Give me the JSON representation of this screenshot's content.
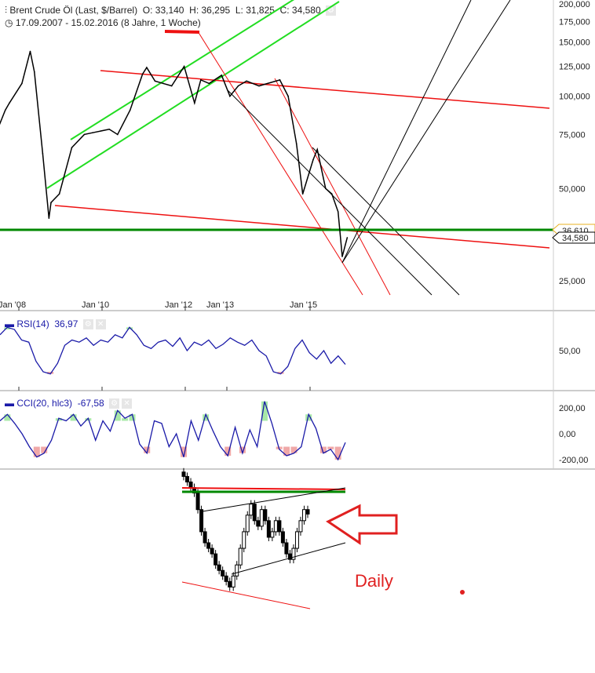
{
  "header": {
    "title": "Brent Crude Öl (Last, $/Barrel)",
    "open": "O: 33,140",
    "high": "H: 36,295",
    "low": "L: 31,825",
    "close": "C: 34,580",
    "range": "17.09.2007 - 15.02.2016 (8 Jahre, 1 Woche)",
    "icons": [
      "settings-icon",
      "clock-icon",
      "gear-icon"
    ]
  },
  "price_labels": {
    "current": "34,580",
    "level": "36,610"
  },
  "annotation": {
    "label": "Daily",
    "color": "#e02020"
  },
  "colors": {
    "price": "#000000",
    "rsi": "#1a1aa8",
    "trend_up": "#22dd22",
    "support": "#008800",
    "trend_down": "#ee1111",
    "overbought": "#a8e8a8",
    "oversold": "#f0a8a8"
  },
  "rsi": {
    "label": "RSI(14)",
    "value": "36,97"
  },
  "cci": {
    "label": "CCI(20, hlc3)",
    "value": "-67,58"
  },
  "chart_data": [
    {
      "type": "line",
      "scale": "log",
      "x_ticks": [
        "Jan '08",
        "Jan '10",
        "Jan '12",
        "Jan '13",
        "Jan '15"
      ],
      "x_tick_years": [
        2008,
        2010,
        2012,
        2013,
        2015
      ],
      "y_ticks": [
        {
          "v": 200,
          "label": "200,000"
        },
        {
          "v": 175,
          "label": "175,000"
        },
        {
          "v": 150,
          "label": "150,000"
        },
        {
          "v": 125,
          "label": "125,000"
        },
        {
          "v": 100,
          "label": "100,000"
        },
        {
          "v": 75,
          "label": "75,000"
        },
        {
          "v": 50,
          "label": "50,000"
        },
        {
          "v": 25,
          "label": "25,000"
        }
      ],
      "ylim": [
        25,
        200
      ],
      "x": [
        2007.7,
        2007.9,
        2008.0,
        2008.3,
        2008.5,
        2008.6,
        2008.8,
        2008.95,
        2009.0,
        2009.2,
        2009.5,
        2009.8,
        2010.0,
        2010.4,
        2010.6,
        2010.9,
        2011.2,
        2011.3,
        2011.5,
        2011.7,
        2011.9,
        2012.2,
        2012.45,
        2012.6,
        2012.8,
        2013.1,
        2013.3,
        2013.5,
        2013.7,
        2014.0,
        2014.5,
        2014.7,
        2014.9,
        2015.05,
        2015.3,
        2015.4,
        2015.6,
        2015.75,
        2015.9,
        2016.0,
        2016.12
      ],
      "y": [
        77,
        90,
        95,
        110,
        140,
        120,
        65,
        40,
        45,
        48,
        68,
        75,
        76,
        78,
        75,
        90,
        118,
        124,
        112,
        110,
        108,
        125,
        95,
        113,
        110,
        117,
        100,
        108,
        112,
        108,
        113,
        100,
        70,
        48,
        62,
        67,
        50,
        48,
        42,
        30,
        34.58
      ],
      "support_level": 36.61
    },
    {
      "type": "line",
      "name": "RSI(14)",
      "ylim": [
        0,
        100
      ],
      "y_ticks": [
        {
          "v": 50,
          "label": "50,00"
        }
      ],
      "values": [
        65,
        72,
        70,
        60,
        58,
        40,
        30,
        28,
        38,
        55,
        60,
        58,
        62,
        55,
        60,
        58,
        65,
        62,
        72,
        65,
        55,
        52,
        58,
        60,
        54,
        62,
        50,
        58,
        55,
        60,
        52,
        56,
        62,
        58,
        55,
        60,
        50,
        45,
        30,
        28,
        35,
        52,
        60,
        48,
        42,
        50,
        38,
        45,
        36.97
      ]
    },
    {
      "type": "line",
      "name": "CCI(20, hlc3)",
      "y_ticks": [
        {
          "v": 200,
          "label": "200,00"
        },
        {
          "v": 0,
          "label": "0,00"
        },
        {
          "v": -200,
          "label": "-200,00"
        }
      ],
      "values": [
        100,
        150,
        80,
        0,
        -100,
        -180,
        -150,
        -50,
        120,
        100,
        150,
        60,
        120,
        -50,
        100,
        20,
        180,
        120,
        150,
        -80,
        -150,
        100,
        80,
        -100,
        0,
        -180,
        100,
        -50,
        150,
        20,
        -100,
        -170,
        50,
        -150,
        30,
        -100,
        250,
        80,
        -120,
        -170,
        -150,
        -100,
        150,
        40,
        -150,
        -120,
        -200,
        -67.58
      ]
    },
    {
      "type": "candlestick",
      "title": "Daily",
      "closes": [
        38,
        37.5,
        37,
        36.5,
        35,
        33,
        32,
        31.5,
        31,
        30,
        29.5,
        29,
        28.5,
        28,
        29,
        30,
        31.5,
        33,
        34.5,
        35.5,
        34,
        33.5,
        35,
        34,
        32.5,
        33,
        34,
        33,
        32,
        31,
        30.5,
        31.5,
        33,
        34,
        35,
        34.6
      ]
    }
  ]
}
